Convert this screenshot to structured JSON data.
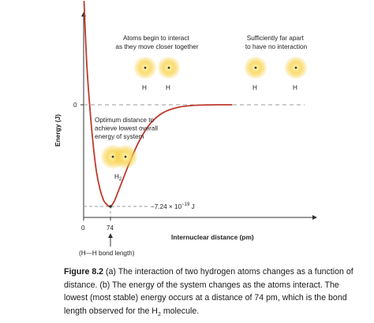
{
  "chart_data": {
    "type": "line",
    "title": "",
    "xlabel": "Internuclear distance (pm)",
    "ylabel": "Energy (J)",
    "x_ticks": [
      {
        "value": 0,
        "label": "0"
      },
      {
        "value": 74,
        "label": "74"
      }
    ],
    "y_ticks": [
      {
        "value": 0,
        "label": "0"
      }
    ],
    "xlim": [
      0,
      420
    ],
    "ylim": [
      -8.6e-19,
      7.4e-19
    ],
    "grid": false,
    "series": [
      {
        "color": "#c0392b",
        "x": [
          1,
          8,
          15,
          25,
          35,
          45,
          55,
          62,
          68,
          72,
          74,
          78,
          85,
          95,
          110,
          130,
          155,
          185,
          220,
          260,
          300,
          340,
          380,
          410
        ],
        "y": [
          7.4e-19,
          3.2e-19,
          5e-20,
          -2.5e-19,
          -4.7e-19,
          -6e-19,
          -6.8e-19,
          -7.05e-19,
          -7.2e-19,
          -7.24e-19,
          -7.24e-19,
          -7.15e-19,
          -6.85e-19,
          -6.2e-19,
          -5.2e-19,
          -3.9e-19,
          -2.5e-19,
          -1.3e-19,
          -5.5e-20,
          -1.8e-20,
          -5e-21,
          -1e-21,
          0,
          0
        ]
      }
    ],
    "minimum": {
      "x": 74,
      "y": -7.24e-19,
      "label_prefix": "−7.24 × 10",
      "label_exp": "−19",
      "label_unit": " J"
    },
    "annotations": [
      {
        "lines": [
          "Atoms begin to interact",
          "as they move closer together"
        ]
      },
      {
        "lines": [
          "Sufficiently far apart",
          "to have no interaction"
        ]
      },
      {
        "lines": [
          "Optimum distance to",
          "achieve lowest overall",
          "energy of system"
        ]
      },
      {
        "lines": [
          "(H—H bond length)"
        ]
      }
    ],
    "atom_labels": [
      "H",
      "H",
      "H",
      "H"
    ],
    "molecule_label": {
      "base": "H",
      "sub": "2"
    },
    "colors": {
      "curve": "#c0392b",
      "axis": "#333333",
      "dashed": "#999999",
      "atom_glow": "#f5c518"
    }
  },
  "caption": {
    "lead": "Figure 8.2",
    "text": " (a) The interaction of two hydrogen atoms changes as a function of distance. (b) The energy of the system changes as the atoms interact. The lowest (most stable) energy occurs at a distance of 74 pm, which is the bond length observed for the H",
    "sub": "2",
    "tail": " molecule."
  }
}
